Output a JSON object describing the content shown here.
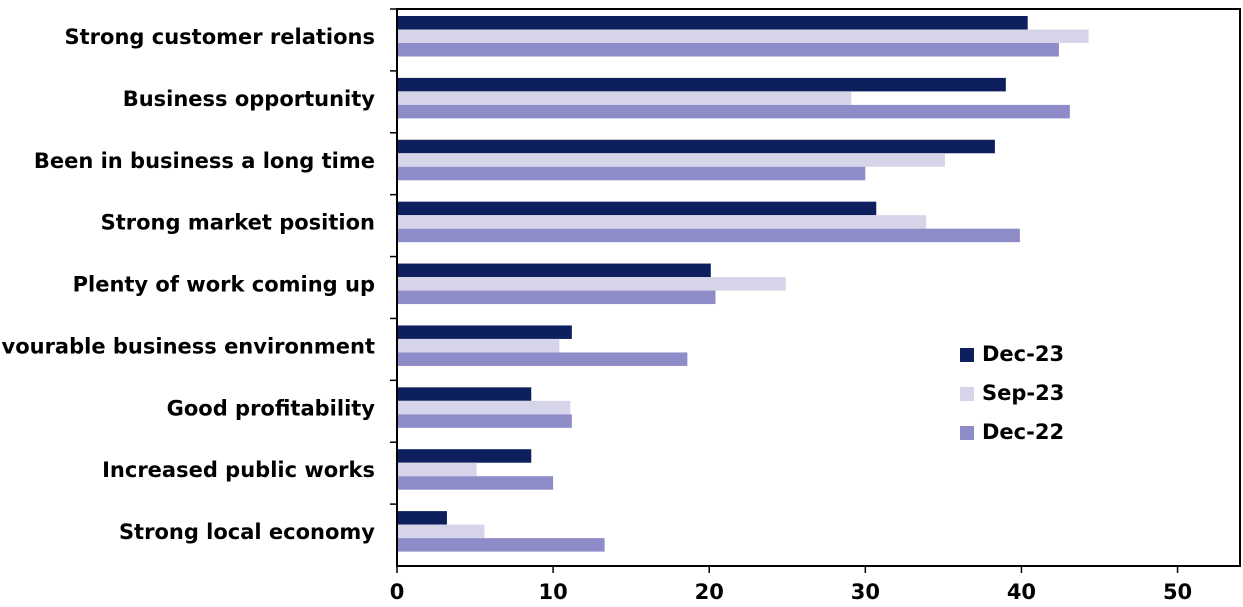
{
  "chart_data": {
    "type": "hbar",
    "categories": [
      "Strong customer relations",
      "Business opportunity",
      "Been in business a long time",
      "Strong market position",
      "Plenty of work coming up",
      "Favourable business environment",
      "Good profitability",
      "Increased public works",
      "Strong local economy"
    ],
    "series": [
      {
        "name": "Dec-23",
        "color": "#0d1f5c",
        "values": [
          40.4,
          39.0,
          38.3,
          30.7,
          20.1,
          11.2,
          8.6,
          8.6,
          3.2
        ]
      },
      {
        "name": "Sep-23",
        "color": "#d6d4e8",
        "values": [
          44.3,
          29.1,
          35.1,
          33.9,
          24.9,
          10.4,
          11.1,
          5.1,
          5.6
        ]
      },
      {
        "name": "Dec-22",
        "color": "#8e8cc8",
        "values": [
          42.4,
          43.1,
          30.0,
          39.9,
          20.4,
          18.6,
          11.2,
          10.0,
          13.3
        ]
      }
    ],
    "xlim": [
      0,
      54
    ],
    "xticks": [
      0,
      10,
      20,
      30,
      40,
      50
    ],
    "legend": "right"
  }
}
